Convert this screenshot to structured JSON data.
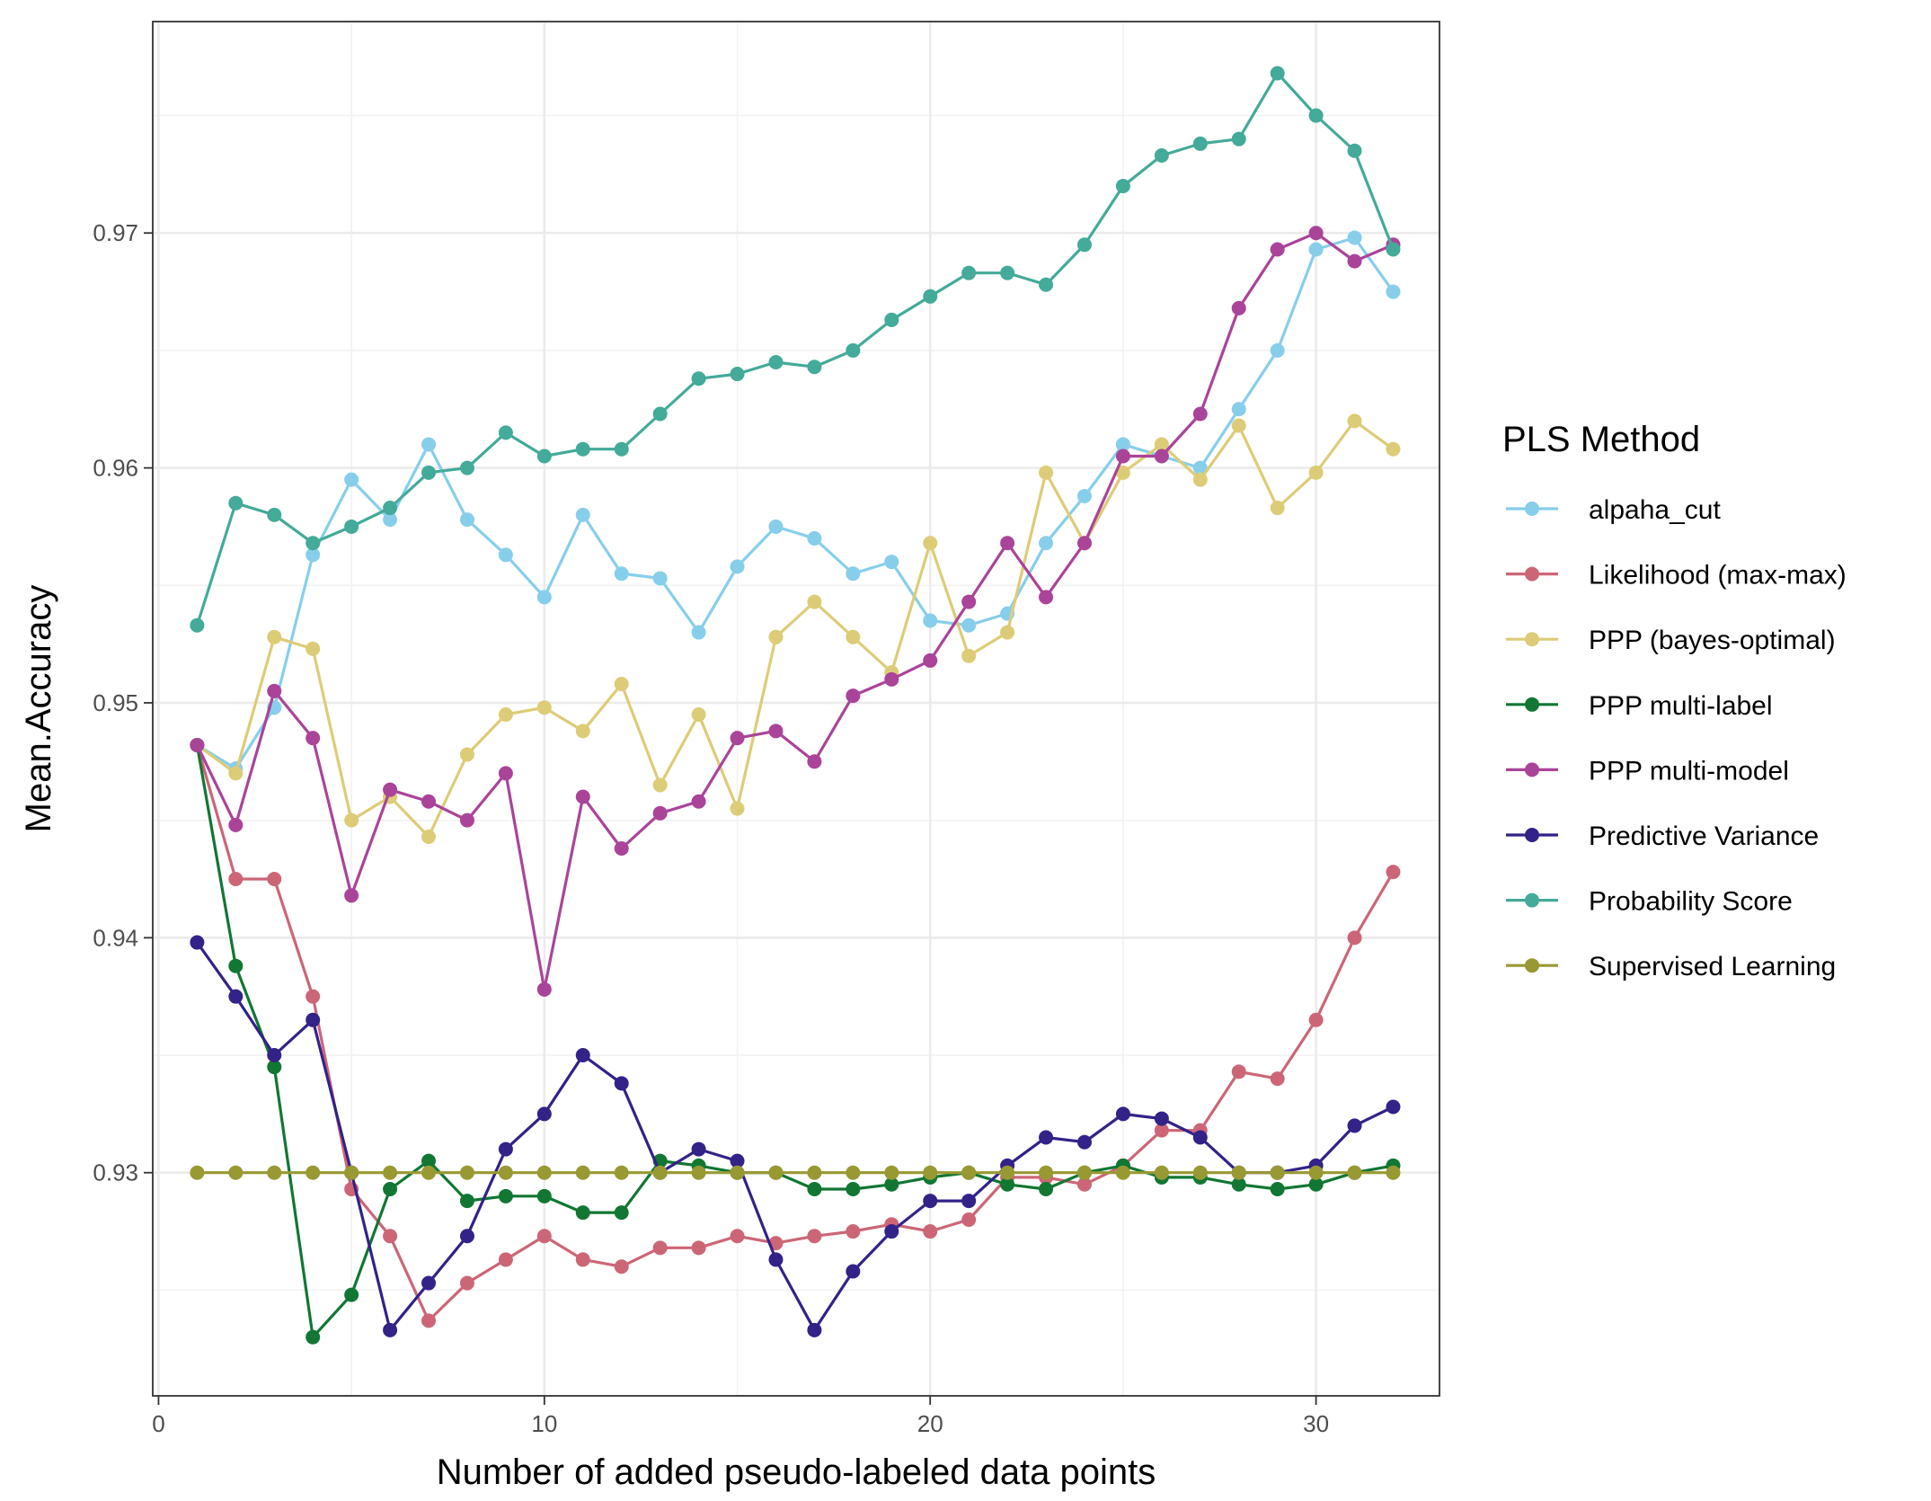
{
  "chart_data": {
    "type": "line",
    "xlabel": "Number of added pseudo-labeled data points",
    "ylabel": "Mean.Accuracy",
    "xlim": [
      -0.15,
      33.2
    ],
    "ylim": [
      0.9205,
      0.979
    ],
    "x_ticks": [
      0,
      10,
      20,
      30
    ],
    "x_tick_labels": [
      "0",
      "10",
      "20",
      "30"
    ],
    "y_ticks": [
      0.93,
      0.94,
      0.95,
      0.96,
      0.97
    ],
    "y_tick_labels": [
      "0.93",
      "0.94",
      "0.95",
      "0.96",
      "0.97"
    ],
    "grid": true,
    "legend_title": "PLS Method",
    "legend_position": "right",
    "x": [
      1,
      2,
      3,
      4,
      5,
      6,
      7,
      8,
      9,
      10,
      11,
      12,
      13,
      14,
      15,
      16,
      17,
      18,
      19,
      20,
      21,
      22,
      23,
      24,
      25,
      26,
      27,
      28,
      29,
      30,
      31,
      32
    ],
    "series": [
      {
        "name": "alpaha_cut",
        "color": "#87ceeb",
        "values": [
          0.9482,
          0.9472,
          0.9498,
          0.9563,
          0.9595,
          0.9578,
          0.961,
          0.9578,
          0.9563,
          0.9545,
          0.958,
          0.9555,
          0.9553,
          0.953,
          0.9558,
          0.9575,
          0.957,
          0.9555,
          0.956,
          0.9535,
          0.9533,
          0.9538,
          0.9568,
          0.9588,
          0.961,
          0.9605,
          0.96,
          0.9625,
          0.965,
          0.9693,
          0.9698,
          0.9675
        ]
      },
      {
        "name": "Likelihood (max-max)",
        "color": "#cc6677",
        "values": [
          0.9482,
          0.9425,
          0.9425,
          0.9375,
          0.9293,
          0.9273,
          0.9237,
          0.9253,
          0.9263,
          0.9273,
          0.9263,
          0.926,
          0.9268,
          0.9268,
          0.9273,
          0.927,
          0.9273,
          0.9275,
          0.9278,
          0.9275,
          0.928,
          0.9298,
          0.9298,
          0.9295,
          0.9303,
          0.9318,
          0.9318,
          0.9343,
          0.934,
          0.9365,
          0.94,
          0.9428
        ]
      },
      {
        "name": "PPP (bayes-optimal)",
        "color": "#ddcc77",
        "values": [
          0.9482,
          0.947,
          0.9528,
          0.9523,
          0.945,
          0.946,
          0.9443,
          0.9478,
          0.9495,
          0.9498,
          0.9488,
          0.9508,
          0.9465,
          0.9495,
          0.9455,
          0.9528,
          0.9543,
          0.9528,
          0.9513,
          0.9568,
          0.952,
          0.953,
          0.9598,
          0.9568,
          0.9598,
          0.961,
          0.9595,
          0.9618,
          0.9583,
          0.9598,
          0.962,
          0.9608
        ]
      },
      {
        "name": "PPP multi-label",
        "color": "#117733",
        "values": [
          0.9482,
          0.9388,
          0.9345,
          0.923,
          0.9248,
          0.9293,
          0.9305,
          0.9288,
          0.929,
          0.929,
          0.9283,
          0.9283,
          0.9305,
          0.9303,
          0.93,
          0.93,
          0.9293,
          0.9293,
          0.9295,
          0.9298,
          0.93,
          0.9295,
          0.9293,
          0.93,
          0.9303,
          0.9298,
          0.9298,
          0.9295,
          0.9293,
          0.9295,
          0.93,
          0.9303
        ]
      },
      {
        "name": "PPP multi-model",
        "color": "#aa4499",
        "values": [
          0.9482,
          0.9448,
          0.9505,
          0.9485,
          0.9418,
          0.9463,
          0.9458,
          0.945,
          0.947,
          0.9378,
          0.946,
          0.9438,
          0.9453,
          0.9458,
          0.9485,
          0.9488,
          0.9475,
          0.9503,
          0.951,
          0.9518,
          0.9543,
          0.9568,
          0.9545,
          0.9568,
          0.9605,
          0.9605,
          0.9623,
          0.9668,
          0.9693,
          0.97,
          0.9688,
          0.9695
        ]
      },
      {
        "name": "Predictive Variance",
        "color": "#332288",
        "values": [
          0.9398,
          0.9375,
          0.935,
          0.9365,
          0.93,
          0.9233,
          0.9253,
          0.9273,
          0.931,
          0.9325,
          0.935,
          0.9338,
          0.93,
          0.931,
          0.9305,
          0.9263,
          0.9233,
          0.9258,
          0.9275,
          0.9288,
          0.9288,
          0.9303,
          0.9315,
          0.9313,
          0.9325,
          0.9323,
          0.9315,
          0.93,
          0.93,
          0.9303,
          0.932,
          0.9328
        ]
      },
      {
        "name": "Probability Score",
        "color": "#44aa99",
        "values": [
          0.9533,
          0.9585,
          0.958,
          0.9568,
          0.9575,
          0.9583,
          0.9598,
          0.96,
          0.9615,
          0.9605,
          0.9608,
          0.9608,
          0.9623,
          0.9638,
          0.964,
          0.9645,
          0.9643,
          0.965,
          0.9663,
          0.9673,
          0.9683,
          0.9683,
          0.9678,
          0.9695,
          0.972,
          0.9733,
          0.9738,
          0.974,
          0.9768,
          0.975,
          0.9735,
          0.9693
        ]
      },
      {
        "name": "Supervised Learning",
        "color": "#999933",
        "values": [
          0.93,
          0.93,
          0.93,
          0.93,
          0.93,
          0.93,
          0.93,
          0.93,
          0.93,
          0.93,
          0.93,
          0.93,
          0.93,
          0.93,
          0.93,
          0.93,
          0.93,
          0.93,
          0.93,
          0.93,
          0.93,
          0.93,
          0.93,
          0.93,
          0.93,
          0.93,
          0.93,
          0.93,
          0.93,
          0.93,
          0.93,
          0.93
        ]
      }
    ]
  }
}
